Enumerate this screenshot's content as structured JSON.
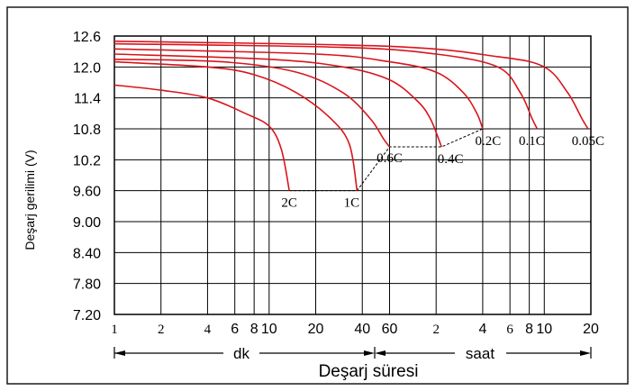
{
  "chart_data": {
    "type": "line",
    "title": "",
    "ylabel": "Deşarj gerilimi (V)",
    "xlabel": "Deşarj süresi",
    "x_scale": "log",
    "x_unit_labels": [
      "dk",
      "saat"
    ],
    "y_ticks": [
      "12.6",
      "12.0",
      "11.4",
      "10.8",
      "10.2",
      "9.60",
      "9.00",
      "8.40",
      "7.80",
      "7.20"
    ],
    "y_tick_values": [
      12.6,
      12.0,
      11.4,
      10.8,
      10.2,
      9.6,
      9.0,
      8.4,
      7.8,
      7.2
    ],
    "ylim": [
      7.2,
      12.6
    ],
    "x_ticks": [
      {
        "label": "1",
        "minutes": 1,
        "style": "serif"
      },
      {
        "label": "2",
        "minutes": 2,
        "style": "serif"
      },
      {
        "label": "4",
        "minutes": 4,
        "style": "serif"
      },
      {
        "label": "6",
        "minutes": 6,
        "style": "sans"
      },
      {
        "label": "8",
        "minutes": 8,
        "style": "sans"
      },
      {
        "label": "10",
        "minutes": 10,
        "style": "sans"
      },
      {
        "label": "20",
        "minutes": 20,
        "style": "sans"
      },
      {
        "label": "40",
        "minutes": 40,
        "style": "sans"
      },
      {
        "label": "60",
        "minutes": 60,
        "style": "sans"
      },
      {
        "label": "2",
        "minutes": 120,
        "style": "serif"
      },
      {
        "label": "4",
        "minutes": 240,
        "style": "sans"
      },
      {
        "label": "6",
        "minutes": 360,
        "style": "serif"
      },
      {
        "label": "8",
        "minutes": 480,
        "style": "sans"
      },
      {
        "label": "10",
        "minutes": 600,
        "style": "sans"
      },
      {
        "label": "20",
        "minutes": 1200,
        "style": "sans"
      }
    ],
    "xlim_minutes": [
      1,
      1200
    ],
    "series": [
      {
        "name": "2C",
        "points": [
          [
            1,
            11.65
          ],
          [
            2,
            11.55
          ],
          [
            4,
            11.4
          ],
          [
            7,
            11.1
          ],
          [
            10,
            10.85
          ],
          [
            12,
            10.4
          ],
          [
            13.5,
            9.6
          ]
        ]
      },
      {
        "name": "1C",
        "points": [
          [
            1,
            12.1
          ],
          [
            4,
            12.0
          ],
          [
            8,
            11.85
          ],
          [
            15,
            11.5
          ],
          [
            25,
            11.0
          ],
          [
            33,
            10.5
          ],
          [
            37,
            9.6
          ]
        ]
      },
      {
        "name": "0.6C",
        "points": [
          [
            1,
            12.15
          ],
          [
            5,
            12.1
          ],
          [
            15,
            11.9
          ],
          [
            30,
            11.5
          ],
          [
            45,
            11.0
          ],
          [
            55,
            10.6
          ],
          [
            60,
            10.45
          ]
        ]
      },
      {
        "name": "0.4C",
        "points": [
          [
            1,
            12.25
          ],
          [
            10,
            12.15
          ],
          [
            30,
            12.0
          ],
          [
            60,
            11.75
          ],
          [
            90,
            11.35
          ],
          [
            110,
            11.0
          ],
          [
            130,
            10.45
          ]
        ]
      },
      {
        "name": "0.2C",
        "points": [
          [
            1,
            12.35
          ],
          [
            20,
            12.25
          ],
          [
            60,
            12.1
          ],
          [
            120,
            11.9
          ],
          [
            180,
            11.5
          ],
          [
            220,
            11.1
          ],
          [
            240,
            10.8
          ]
        ]
      },
      {
        "name": "0.1C",
        "points": [
          [
            1,
            12.45
          ],
          [
            30,
            12.38
          ],
          [
            120,
            12.25
          ],
          [
            300,
            12.0
          ],
          [
            420,
            11.5
          ],
          [
            500,
            11.0
          ],
          [
            540,
            10.8
          ]
        ]
      },
      {
        "name": "0.05C",
        "points": [
          [
            1,
            12.5
          ],
          [
            60,
            12.4
          ],
          [
            300,
            12.2
          ],
          [
            600,
            12.0
          ],
          [
            850,
            11.5
          ],
          [
            1050,
            11.0
          ],
          [
            1150,
            10.8
          ]
        ]
      }
    ],
    "cutoff_line": [
      [
        13.5,
        9.6
      ],
      [
        37,
        9.6
      ],
      [
        60,
        10.45
      ],
      [
        130,
        10.45
      ],
      [
        240,
        10.8
      ],
      [
        540,
        10.8
      ],
      [
        1150,
        10.8
      ]
    ],
    "series_color": "#d9151c",
    "grid": true,
    "legend": "none"
  }
}
